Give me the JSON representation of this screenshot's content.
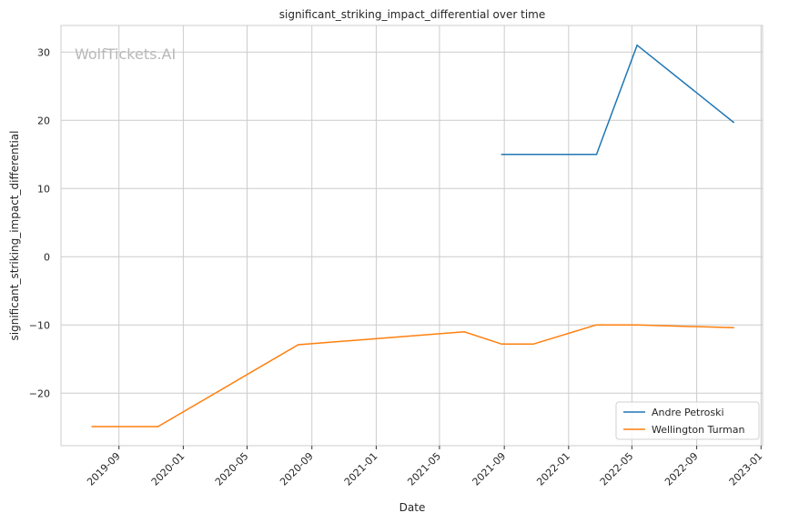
{
  "chart_data": {
    "type": "line",
    "title": "significant_striking_impact_differential over time",
    "xlabel": "Date",
    "ylabel": "significant_striking_impact_differential",
    "watermark": "WolfTickets.AI",
    "xlim": [
      "2019-05-14",
      "2023-01-04"
    ],
    "ylim": [
      -27.7,
      33.9
    ],
    "x_ticks": [
      "2019-09",
      "2020-01",
      "2020-05",
      "2020-09",
      "2021-01",
      "2021-05",
      "2021-09",
      "2022-01",
      "2022-05",
      "2022-09",
      "2023-01"
    ],
    "y_ticks": [
      -20,
      -10,
      0,
      10,
      20,
      30
    ],
    "grid": true,
    "legend_position": "bottom-right",
    "series": [
      {
        "name": "Andre Petroski",
        "color": "#1f77b4",
        "x": [
          "2021-08-27",
          "2022-02-23",
          "2022-05-11",
          "2022-11-10"
        ],
        "y": [
          15,
          15,
          31,
          19.7
        ]
      },
      {
        "name": "Wellington Turman",
        "color": "#ff7f0e",
        "x": [
          "2019-07-12",
          "2019-11-14",
          "2020-08-06",
          "2021-06-17",
          "2021-08-27",
          "2021-10-26",
          "2022-02-22",
          "2022-05-11",
          "2022-11-10"
        ],
        "y": [
          -24.9,
          -24.9,
          -12.9,
          -11,
          -12.8,
          -12.8,
          -10,
          -10,
          -10.4
        ]
      }
    ]
  }
}
